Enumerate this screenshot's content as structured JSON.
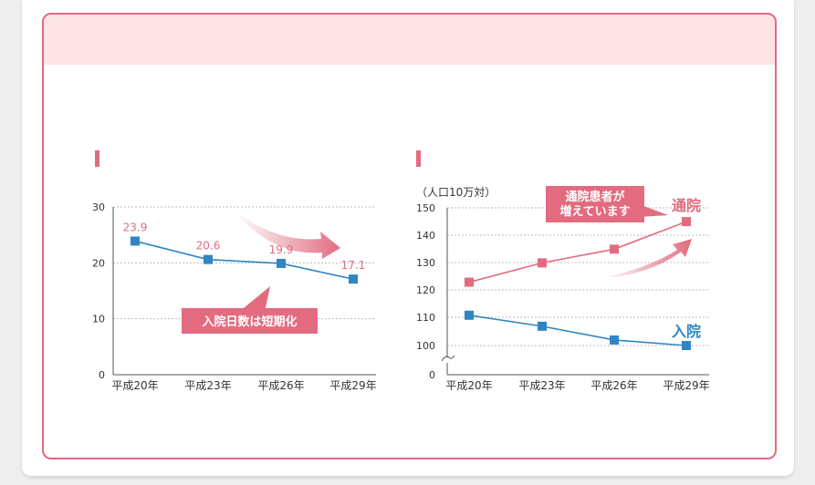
{
  "chart_data": [
    {
      "type": "line",
      "categories": [
        "平成20年",
        "平成23年",
        "平成26年",
        "平成29年"
      ],
      "ylim": [
        0,
        30
      ],
      "yticks": [
        0,
        10,
        20,
        30
      ],
      "series": [
        {
          "values": [
            23.9,
            20.6,
            19.9,
            17.1
          ],
          "color": "#2f86c3"
        }
      ],
      "data_labels": [
        "23.9",
        "20.6",
        "19.9",
        "17.1"
      ],
      "data_label_color": "#e26b80",
      "annotation": "入院日数は短期化",
      "grid": true
    },
    {
      "type": "line",
      "categories": [
        "平成20年",
        "平成23年",
        "平成26年",
        "平成29年"
      ],
      "ylabel": "（人口10万対）",
      "ylim": [
        100,
        150
      ],
      "yticks": [
        0,
        100,
        110,
        120,
        130,
        140,
        150
      ],
      "axis_break": true,
      "series": [
        {
          "name": "通院",
          "values": [
            123,
            130,
            135,
            145
          ],
          "color": "#e26b80"
        },
        {
          "name": "入院",
          "values": [
            111,
            107,
            102,
            100
          ],
          "color": "#2f86c3"
        }
      ],
      "annotation": "通院患者が\n増えています",
      "grid": true
    }
  ]
}
